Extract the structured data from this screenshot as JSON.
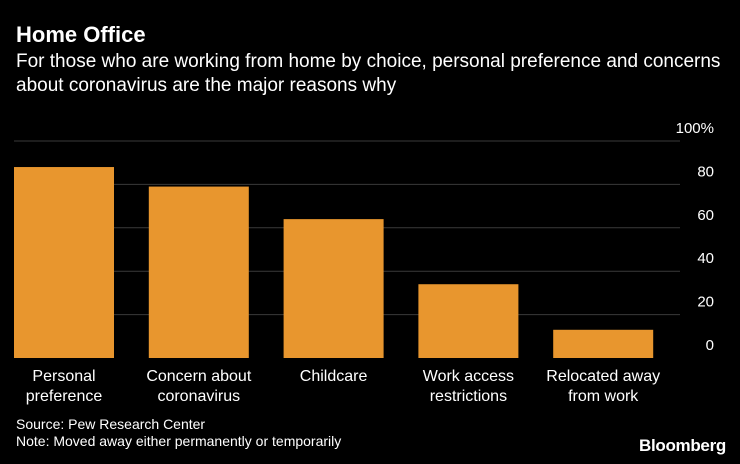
{
  "title": "Home Office",
  "subtitle": "For those who are working from home by choice, personal preference and concerns about coronavirus are the major reasons why",
  "source": "Source: Pew Research Center",
  "note": "Note: Moved away either permanently or temporarily",
  "brand": "Bloomberg",
  "colors": {
    "bar": "#e8962e",
    "grid": "#3a3a3a",
    "background": "#000000",
    "text": "#ffffff"
  },
  "chart_data": {
    "type": "bar",
    "categories": [
      [
        "Personal",
        "preference"
      ],
      [
        "Concern about",
        "coronavirus"
      ],
      [
        "Childcare"
      ],
      [
        "Work access",
        "restrictions"
      ],
      [
        "Relocated away",
        "from work"
      ]
    ],
    "values": [
      88,
      79,
      64,
      34,
      13
    ],
    "yticks": [
      "0",
      "20",
      "40",
      "60",
      "80",
      "100%"
    ],
    "ylim": [
      0,
      100
    ],
    "grid": true,
    "axis_position": "right"
  }
}
